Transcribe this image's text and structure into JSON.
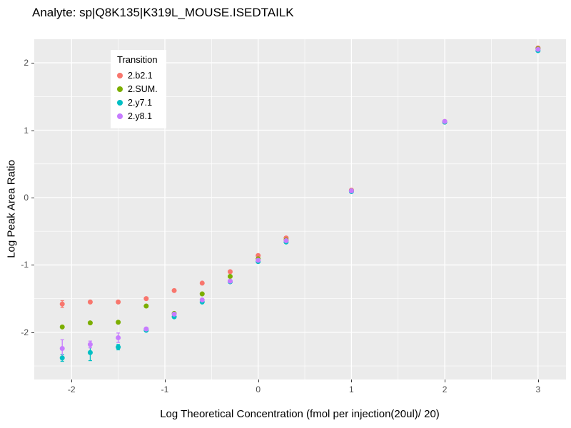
{
  "chart_data": {
    "type": "scatter",
    "title": "Analyte: sp|Q8K135|K319L_MOUSE.ISEDTAILK",
    "xlabel": "Log Theoretical Concentration (fmol per injection(20ul)/ 20)",
    "ylabel": "Log Peak Area Ratio",
    "legend_title": "Transition",
    "legend_position": "top-left-inside",
    "panel_bg": "#EBEBEB",
    "grid_color": "#FFFFFF",
    "xlim": [
      -2.4,
      3.3
    ],
    "ylim": [
      -2.7,
      2.35
    ],
    "xticks": [
      -2,
      -1,
      0,
      1,
      2,
      3
    ],
    "yticks": [
      -2,
      -1,
      0,
      1,
      2
    ],
    "xminor": [
      -1.5,
      -0.5,
      0.5,
      1.5,
      2.5
    ],
    "yminor": [
      -2.5,
      -1.5,
      -0.5,
      0.5,
      1.5
    ],
    "x": [
      -2.1,
      -1.8,
      -1.5,
      -1.2,
      -0.9,
      -0.6,
      -0.3,
      0,
      0.3,
      1,
      2,
      3
    ],
    "series": [
      {
        "name": "2.b2.1",
        "color": "#F8766D",
        "values": [
          -1.58,
          -1.55,
          -1.55,
          -1.5,
          -1.38,
          -1.27,
          -1.1,
          -0.86,
          -0.6,
          0.11,
          1.13,
          2.22
        ],
        "yerr": [
          0.05,
          0,
          0,
          0,
          0,
          0,
          0,
          0,
          0,
          0,
          0,
          0
        ]
      },
      {
        "name": "2.SUM.",
        "color": "#7CAE00",
        "values": [
          -1.92,
          -1.86,
          -1.85,
          -1.61,
          -1.72,
          -1.43,
          -1.17,
          -0.91,
          -0.63,
          0.1,
          1.12,
          2.21
        ],
        "yerr": [
          0,
          0,
          0,
          0,
          0,
          0,
          0,
          0,
          0,
          0,
          0,
          0
        ]
      },
      {
        "name": "2.y7.1",
        "color": "#00BFC4",
        "values": [
          -2.38,
          -2.3,
          -2.22,
          -1.97,
          -1.77,
          -1.55,
          -1.25,
          -0.95,
          -0.66,
          0.09,
          1.12,
          2.18
        ],
        "yerr": [
          0.05,
          0.12,
          0.04,
          0,
          0,
          0,
          0,
          0,
          0,
          0,
          0,
          0
        ]
      },
      {
        "name": "2.y8.1",
        "color": "#C77CFF",
        "values": [
          -2.24,
          -2.18,
          -2.08,
          -1.95,
          -1.73,
          -1.52,
          -1.24,
          -0.93,
          -0.64,
          0.1,
          1.13,
          2.2
        ],
        "yerr": [
          0.13,
          0.05,
          0.07,
          0,
          0,
          0,
          0,
          0,
          0,
          0,
          0,
          0
        ]
      }
    ]
  }
}
